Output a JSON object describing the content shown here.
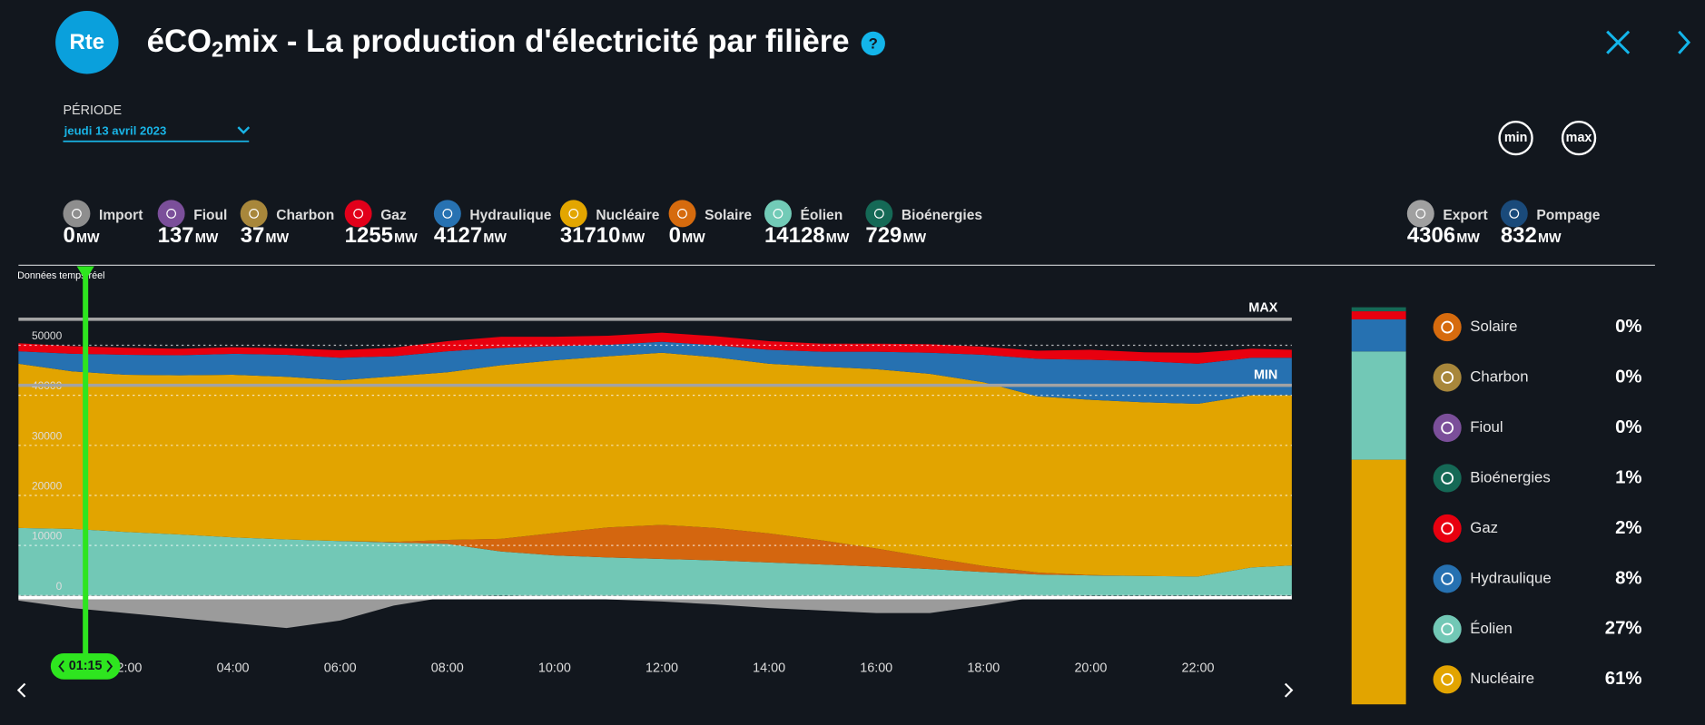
{
  "header": {
    "logo": "Rte",
    "title_start": "éCO",
    "title_sub": "2",
    "title_end": "mix - La production d'électricité par filière",
    "help": "?"
  },
  "period": {
    "label": "PÉRIODE",
    "value": "jeudi 13 avril 2023"
  },
  "buttons": {
    "min": "min",
    "max": "max"
  },
  "production": [
    {
      "name": "Import",
      "value": 0,
      "unit": "MW",
      "color": "#8e8e8e"
    },
    {
      "name": "Fioul",
      "value": 137,
      "unit": "MW",
      "color": "#7b4f9a"
    },
    {
      "name": "Charbon",
      "value": 37,
      "unit": "MW",
      "color": "#a8873b"
    },
    {
      "name": "Gaz",
      "value": 1255,
      "unit": "MW",
      "color": "#e2001a"
    },
    {
      "name": "Hydraulique",
      "value": 4127,
      "unit": "MW",
      "color": "#2772b2"
    },
    {
      "name": "Nucléaire",
      "value": 31710,
      "unit": "MW",
      "color": "#e3a600"
    },
    {
      "name": "Solaire",
      "value": 0,
      "unit": "MW",
      "color": "#d66b0e"
    },
    {
      "name": "Éolien",
      "value": 14128,
      "unit": "MW",
      "color": "#72cbb7"
    },
    {
      "name": "Bioénergies",
      "value": 729,
      "unit": "MW",
      "color": "#156956"
    }
  ],
  "exchanges": [
    {
      "name": "Export",
      "value": 4306,
      "unit": "MW",
      "color": "#a0a0a0"
    },
    {
      "name": "Pompage",
      "value": 832,
      "unit": "MW",
      "color": "#1a4a7a"
    }
  ],
  "chart_data": [
    {
      "type": "area",
      "subtitle": "Données temps réel",
      "stacked": true,
      "x": [
        0,
        1,
        2,
        3,
        4,
        5,
        6,
        7,
        8,
        9,
        10,
        11,
        12,
        13,
        14,
        15,
        16,
        17,
        18,
        19,
        20,
        21,
        22,
        23,
        23.75
      ],
      "xlim": [
        0,
        23.75
      ],
      "xticks": [
        {
          "value": 2,
          "label": "02:00"
        },
        {
          "value": 4,
          "label": "04:00"
        },
        {
          "value": 6,
          "label": "06:00"
        },
        {
          "value": 8,
          "label": "08:00"
        },
        {
          "value": 10,
          "label": "10:00"
        },
        {
          "value": 12,
          "label": "12:00"
        },
        {
          "value": 14,
          "label": "14:00"
        },
        {
          "value": 16,
          "label": "16:00"
        },
        {
          "value": 18,
          "label": "18:00"
        },
        {
          "value": 20,
          "label": "20:00"
        },
        {
          "value": 22,
          "label": "22:00"
        }
      ],
      "ylim": [
        -8500,
        56000
      ],
      "yticks": [
        0,
        10000,
        20000,
        30000,
        40000,
        50000
      ],
      "grid": true,
      "series": [
        {
          "color": "#9b9b9b",
          "values": [
            -1000,
            -2500,
            -3500,
            -4500,
            -5500,
            -6500,
            -5000,
            -2000,
            -300,
            0,
            -300,
            -800,
            -1200,
            -1800,
            -2500,
            -3000,
            -3500,
            -3500,
            -2000,
            -300,
            0,
            0,
            0,
            0,
            0
          ]
        },
        {
          "color": "#72c8b6",
          "values": [
            13500,
            13300,
            12700,
            12200,
            11600,
            11200,
            10900,
            10600,
            10300,
            8800,
            8000,
            7600,
            7300,
            7000,
            6600,
            6200,
            5800,
            5300,
            4700,
            4200,
            4000,
            3900,
            3800,
            5600,
            6000
          ]
        },
        {
          "color": "#d4660f",
          "values": [
            0,
            0,
            0,
            0,
            0,
            0,
            0,
            100,
            800,
            2500,
            4500,
            6000,
            6800,
            6500,
            5800,
            4800,
            3600,
            2300,
            1200,
            400,
            100,
            0,
            0,
            0,
            0
          ]
        },
        {
          "color": "#e2a400",
          "values": [
            32800,
            31500,
            31400,
            31800,
            32500,
            32500,
            32100,
            33100,
            33500,
            34700,
            34500,
            34200,
            34400,
            34100,
            33900,
            34700,
            35800,
            36700,
            36700,
            35200,
            35000,
            34700,
            34500,
            34400,
            34000
          ]
        },
        {
          "color": "#2671b1",
          "values": [
            2500,
            3500,
            4000,
            4000,
            4200,
            4400,
            4500,
            4000,
            4200,
            3500,
            2800,
            2300,
            2200,
            2400,
            2800,
            3000,
            3500,
            4200,
            5500,
            7500,
            8000,
            8200,
            8000,
            7500,
            7500
          ]
        },
        {
          "color": "#e8000f",
          "values": [
            1600,
            1500,
            1400,
            1300,
            1300,
            1300,
            1500,
            1700,
            2000,
            2200,
            1900,
            1800,
            1800,
            1800,
            1700,
            1600,
            1600,
            1700,
            1600,
            1600,
            2000,
            1800,
            2200,
            1800,
            1600
          ]
        }
      ],
      "max_line": {
        "value": 55200,
        "label": "MAX"
      },
      "min_line": {
        "value": 42000,
        "label": "MIN"
      },
      "current_time": {
        "value": 1.25,
        "label": "01:15"
      }
    },
    {
      "type": "stacked-bar",
      "categories": [
        "Solaire",
        "Charbon",
        "Fioul",
        "Bioénergies",
        "Gaz",
        "Hydraulique",
        "Éolien",
        "Nucléaire"
      ],
      "values": [
        0,
        0,
        0,
        1,
        2,
        8,
        27,
        61
      ],
      "value_labels": [
        "0%",
        "0%",
        "0%",
        "1%",
        "2%",
        "8%",
        "27%",
        "61%"
      ],
      "colors": [
        "#d66b0e",
        "#a8873b",
        "#7b4f9a",
        "#156956",
        "#e8000f",
        "#2671b1",
        "#72c8b6",
        "#e2a400"
      ],
      "ylim": [
        0,
        100
      ]
    }
  ]
}
